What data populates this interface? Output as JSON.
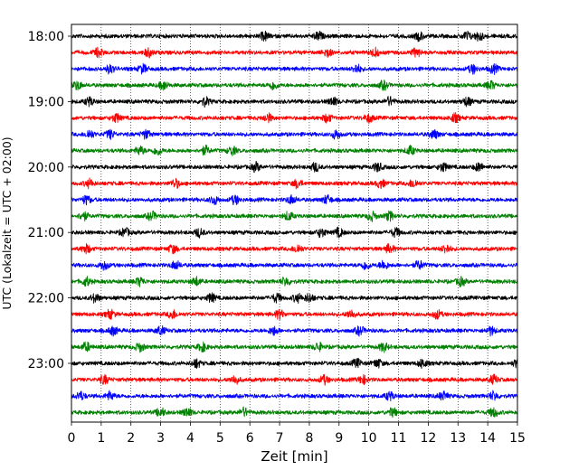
{
  "chart_data": {
    "type": "line",
    "title": "",
    "xlabel": "Zeit  [min]",
    "ylabel": "UTC (Lokalzeit = UTC + 02:00)",
    "xlim": [
      0,
      15
    ],
    "xticks": [
      "0",
      "1",
      "2",
      "3",
      "4",
      "5",
      "6",
      "7",
      "8",
      "9",
      "10",
      "11",
      "12",
      "13",
      "14",
      "15"
    ],
    "yticks": [
      "18:00",
      "19:00",
      "20:00",
      "21:00",
      "22:00",
      "23:00"
    ],
    "grid": "vertical dotted at each minute",
    "trace_interval_minutes": 15,
    "colors": [
      "#000000",
      "#ff0000",
      "#0000ff",
      "#008000"
    ],
    "traces": [
      {
        "start": "18:00",
        "color": "#000000",
        "bursts": [
          6.5,
          8.3,
          11.7,
          13.3,
          13.7
        ]
      },
      {
        "start": "18:15",
        "color": "#ff0000",
        "bursts": [
          0.9,
          2.6,
          8.6,
          10.2,
          11.6
        ]
      },
      {
        "start": "18:30",
        "color": "#0000ff",
        "bursts": [
          1.3,
          2.4,
          9.6,
          13.5,
          14.2
        ]
      },
      {
        "start": "18:45",
        "color": "#008000",
        "bursts": [
          0.2,
          3.1,
          6.8,
          10.5,
          14.1
        ]
      },
      {
        "start": "19:00",
        "color": "#000000",
        "bursts": [
          0.6,
          4.5,
          8.8,
          10.7,
          13.3
        ]
      },
      {
        "start": "19:15",
        "color": "#ff0000",
        "bursts": [
          1.5,
          6.6,
          8.6,
          10.0,
          12.9
        ]
      },
      {
        "start": "19:30",
        "color": "#0000ff",
        "bursts": [
          0.6,
          1.3,
          2.5,
          8.9,
          12.2
        ]
      },
      {
        "start": "19:45",
        "color": "#008000",
        "bursts": [
          2.3,
          2.9,
          4.5,
          5.4,
          11.4
        ]
      },
      {
        "start": "20:00",
        "color": "#000000",
        "bursts": [
          6.2,
          8.2,
          10.3,
          12.5,
          13.7
        ]
      },
      {
        "start": "20:15",
        "color": "#ff0000",
        "bursts": [
          0.6,
          3.5,
          7.6,
          10.4,
          11.5
        ]
      },
      {
        "start": "20:30",
        "color": "#0000ff",
        "bursts": [
          0.5,
          4.8,
          5.5,
          7.4,
          8.6
        ]
      },
      {
        "start": "20:45",
        "color": "#008000",
        "bursts": [
          0.4,
          2.7,
          7.3,
          10.1,
          10.7
        ]
      },
      {
        "start": "21:00",
        "color": "#000000",
        "bursts": [
          1.8,
          4.3,
          8.4,
          9.0,
          10.9
        ]
      },
      {
        "start": "21:15",
        "color": "#ff0000",
        "bursts": [
          0.5,
          3.4,
          7.6,
          10.7,
          12.6
        ]
      },
      {
        "start": "21:30",
        "color": "#0000ff",
        "bursts": [
          1.1,
          3.5,
          9.9,
          10.5,
          11.7
        ]
      },
      {
        "start": "21:45",
        "color": "#008000",
        "bursts": [
          0.5,
          2.3,
          4.2,
          7.2,
          13.1
        ]
      },
      {
        "start": "22:00",
        "color": "#000000",
        "bursts": [
          0.8,
          4.7,
          6.9,
          7.6,
          8.0
        ]
      },
      {
        "start": "22:15",
        "color": "#ff0000",
        "bursts": [
          1.3,
          3.4,
          7.0,
          9.4,
          12.3
        ]
      },
      {
        "start": "22:30",
        "color": "#0000ff",
        "bursts": [
          1.4,
          3.0,
          6.8,
          9.7,
          14.1
        ]
      },
      {
        "start": "22:45",
        "color": "#008000",
        "bursts": [
          0.5,
          2.3,
          4.4,
          8.3,
          10.5
        ]
      },
      {
        "start": "23:00",
        "color": "#000000",
        "bursts": [
          4.2,
          9.6,
          10.3,
          11.8,
          15.0
        ]
      },
      {
        "start": "23:15",
        "color": "#ff0000",
        "bursts": [
          1.1,
          5.5,
          8.5,
          9.8,
          14.2
        ]
      },
      {
        "start": "23:30",
        "color": "#0000ff",
        "bursts": [
          0.3,
          1.3,
          10.7,
          12.5,
          14.2
        ]
      },
      {
        "start": "23:45",
        "color": "#008000",
        "bursts": [
          3.0,
          3.9,
          5.8,
          10.8,
          14.2
        ]
      }
    ]
  }
}
